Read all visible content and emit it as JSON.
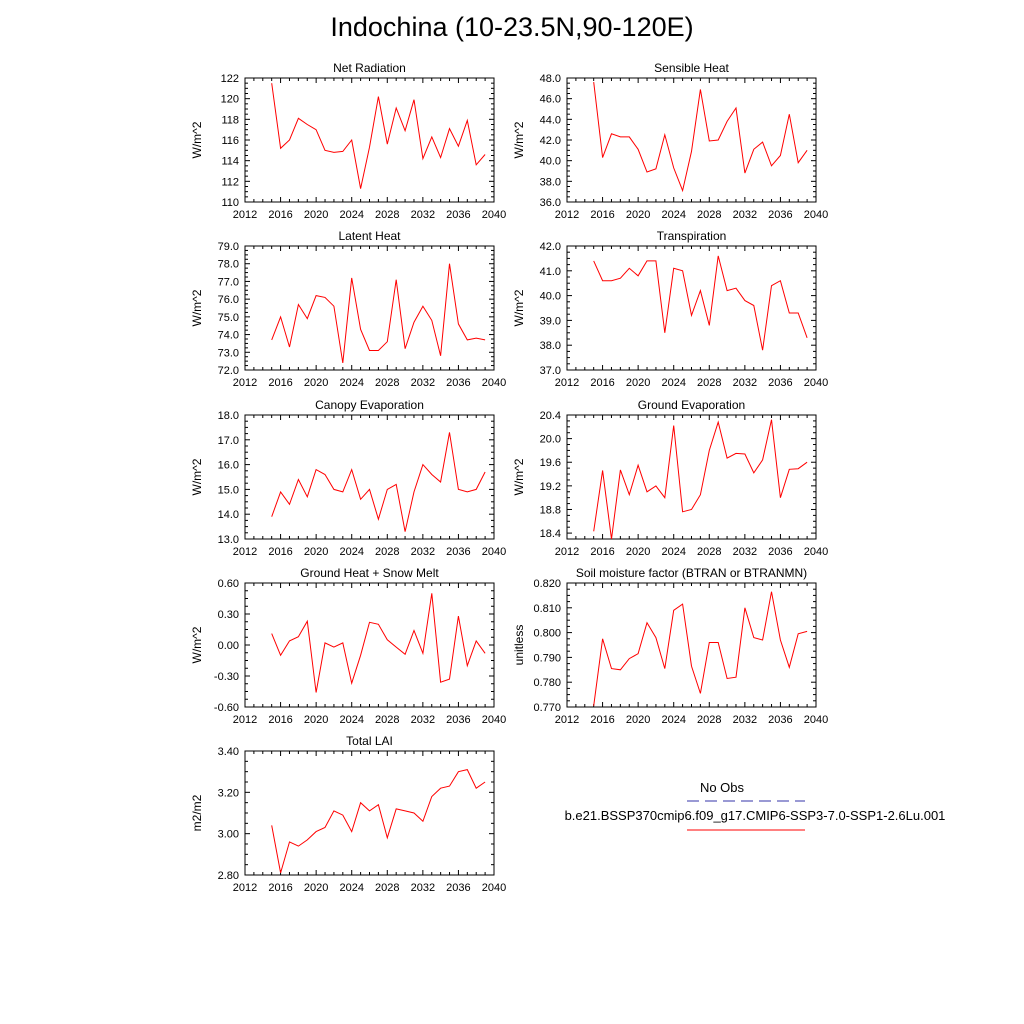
{
  "title": "Indochina (10-23.5N,90-120E)",
  "legend": {
    "obs_label": "No Obs",
    "obs_color": "#3333aa",
    "case_label": "b.e21.BSSP370cmip6.f09_g17.CMIP6-SSP3-7.0-SSP1-2.6Lu.001",
    "case_color": "#ff0000"
  },
  "chart_data": [
    {
      "type": "line",
      "title": "Net Radiation",
      "ylabel": "W/m^2",
      "xlim": [
        2012,
        2040
      ],
      "ylim": [
        110,
        122
      ],
      "xticks": [
        2012,
        2016,
        2020,
        2024,
        2028,
        2032,
        2036,
        2040
      ],
      "yticks": [
        110,
        112,
        114,
        116,
        118,
        120,
        122
      ],
      "ytick_labels": [
        "110",
        "112",
        "114",
        "116",
        "118",
        "120",
        "122"
      ],
      "x": [
        2015,
        2016,
        2017,
        2018,
        2019,
        2020,
        2021,
        2022,
        2023,
        2024,
        2025,
        2026,
        2027,
        2028,
        2029,
        2030,
        2031,
        2032,
        2033,
        2034,
        2035,
        2036,
        2037,
        2038,
        2039
      ],
      "series": [
        {
          "values": [
            121.5,
            115.2,
            116.0,
            118.1,
            117.5,
            117.0,
            115.0,
            114.8,
            114.9,
            116.0,
            111.3,
            115.3,
            120.2,
            115.6,
            119.1,
            116.9,
            119.9,
            114.2,
            116.3,
            114.3,
            117.1,
            115.4,
            117.9,
            113.6,
            114.6
          ]
        }
      ]
    },
    {
      "type": "line",
      "title": "Sensible Heat",
      "ylabel": "W/m^2",
      "xlim": [
        2012,
        2040
      ],
      "ylim": [
        36,
        48
      ],
      "xticks": [
        2012,
        2016,
        2020,
        2024,
        2028,
        2032,
        2036,
        2040
      ],
      "yticks": [
        36,
        38,
        40,
        42,
        44,
        46,
        48
      ],
      "ytick_labels": [
        "36.0",
        "38.0",
        "40.0",
        "42.0",
        "44.0",
        "46.0",
        "48.0"
      ],
      "x": [
        2015,
        2016,
        2017,
        2018,
        2019,
        2020,
        2021,
        2022,
        2023,
        2024,
        2025,
        2026,
        2027,
        2028,
        2029,
        2030,
        2031,
        2032,
        2033,
        2034,
        2035,
        2036,
        2037,
        2038,
        2039
      ],
      "series": [
        {
          "values": [
            47.6,
            40.3,
            42.6,
            42.3,
            42.3,
            41.1,
            38.9,
            39.2,
            42.5,
            39.3,
            37.1,
            40.9,
            46.9,
            41.9,
            42.0,
            43.8,
            45.1,
            38.8,
            41.1,
            41.8,
            39.5,
            40.5,
            44.5,
            39.8,
            41.0
          ]
        }
      ]
    },
    {
      "type": "line",
      "title": "Latent Heat",
      "ylabel": "W/m^2",
      "xlim": [
        2012,
        2040
      ],
      "ylim": [
        72,
        79
      ],
      "xticks": [
        2012,
        2016,
        2020,
        2024,
        2028,
        2032,
        2036,
        2040
      ],
      "yticks": [
        72,
        73,
        74,
        75,
        76,
        77,
        78,
        79
      ],
      "ytick_labels": [
        "72.0",
        "73.0",
        "74.0",
        "75.0",
        "76.0",
        "77.0",
        "78.0",
        "79.0"
      ],
      "x": [
        2015,
        2016,
        2017,
        2018,
        2019,
        2020,
        2021,
        2022,
        2023,
        2024,
        2025,
        2026,
        2027,
        2028,
        2029,
        2030,
        2031,
        2032,
        2033,
        2034,
        2035,
        2036,
        2037,
        2038,
        2039
      ],
      "series": [
        {
          "values": [
            73.7,
            75.0,
            73.3,
            75.7,
            74.9,
            76.2,
            76.1,
            75.6,
            72.4,
            77.2,
            74.3,
            73.1,
            73.1,
            73.6,
            77.1,
            73.2,
            74.7,
            75.6,
            74.8,
            72.8,
            78.0,
            74.6,
            73.7,
            73.8,
            73.7
          ]
        }
      ]
    },
    {
      "type": "line",
      "title": "Transpiration",
      "ylabel": "W/m^2",
      "xlim": [
        2012,
        2040
      ],
      "ylim": [
        37,
        42
      ],
      "xticks": [
        2012,
        2016,
        2020,
        2024,
        2028,
        2032,
        2036,
        2040
      ],
      "yticks": [
        37,
        38,
        39,
        40,
        41,
        42
      ],
      "ytick_labels": [
        "37.0",
        "38.0",
        "39.0",
        "40.0",
        "41.0",
        "42.0"
      ],
      "x": [
        2015,
        2016,
        2017,
        2018,
        2019,
        2020,
        2021,
        2022,
        2023,
        2024,
        2025,
        2026,
        2027,
        2028,
        2029,
        2030,
        2031,
        2032,
        2033,
        2034,
        2035,
        2036,
        2037,
        2038,
        2039
      ],
      "series": [
        {
          "values": [
            41.4,
            40.6,
            40.6,
            40.7,
            41.1,
            40.8,
            41.4,
            41.4,
            38.5,
            41.1,
            41.0,
            39.2,
            40.2,
            38.8,
            41.6,
            40.2,
            40.3,
            39.8,
            39.6,
            37.8,
            40.4,
            40.6,
            39.3,
            39.3,
            38.3
          ]
        }
      ]
    },
    {
      "type": "line",
      "title": "Canopy Evaporation",
      "ylabel": "W/m^2",
      "xlim": [
        2012,
        2040
      ],
      "ylim": [
        13,
        18
      ],
      "xticks": [
        2012,
        2016,
        2020,
        2024,
        2028,
        2032,
        2036,
        2040
      ],
      "yticks": [
        13,
        14,
        15,
        16,
        17,
        18
      ],
      "ytick_labels": [
        "13.0",
        "14.0",
        "15.0",
        "16.0",
        "17.0",
        "18.0"
      ],
      "x": [
        2015,
        2016,
        2017,
        2018,
        2019,
        2020,
        2021,
        2022,
        2023,
        2024,
        2025,
        2026,
        2027,
        2028,
        2029,
        2030,
        2031,
        2032,
        2033,
        2034,
        2035,
        2036,
        2037,
        2038,
        2039
      ],
      "series": [
        {
          "values": [
            13.9,
            14.9,
            14.4,
            15.4,
            14.7,
            15.8,
            15.6,
            15.0,
            14.9,
            15.8,
            14.6,
            15.0,
            13.8,
            15.0,
            15.2,
            13.3,
            14.9,
            16.0,
            15.6,
            15.3,
            17.3,
            15.0,
            14.9,
            15.0,
            15.7
          ]
        }
      ]
    },
    {
      "type": "line",
      "title": "Ground Evaporation",
      "ylabel": "W/m^2",
      "xlim": [
        2012,
        2040
      ],
      "ylim": [
        18.3,
        20.4
      ],
      "xticks": [
        2012,
        2016,
        2020,
        2024,
        2028,
        2032,
        2036,
        2040
      ],
      "yticks": [
        18.4,
        18.8,
        19.2,
        19.6,
        20.0,
        20.4
      ],
      "ytick_labels": [
        "18.4",
        "18.8",
        "19.2",
        "19.6",
        "20.0",
        "20.4"
      ],
      "x": [
        2015,
        2016,
        2017,
        2018,
        2019,
        2020,
        2021,
        2022,
        2023,
        2024,
        2025,
        2026,
        2027,
        2028,
        2029,
        2030,
        2031,
        2032,
        2033,
        2034,
        2035,
        2036,
        2037,
        2038,
        2039
      ],
      "series": [
        {
          "values": [
            18.43,
            19.46,
            18.3,
            19.47,
            19.05,
            19.55,
            19.1,
            19.2,
            19.0,
            20.22,
            18.76,
            18.8,
            19.05,
            19.8,
            20.28,
            19.67,
            19.75,
            19.74,
            19.42,
            19.64,
            20.32,
            19.0,
            19.48,
            19.49,
            19.6
          ]
        }
      ]
    },
    {
      "type": "line",
      "title": "Ground Heat + Snow Melt",
      "ylabel": "W/m^2",
      "xlim": [
        2012,
        2040
      ],
      "ylim": [
        -0.6,
        0.6
      ],
      "xticks": [
        2012,
        2016,
        2020,
        2024,
        2028,
        2032,
        2036,
        2040
      ],
      "yticks": [
        -0.6,
        -0.3,
        0.0,
        0.3,
        0.6
      ],
      "ytick_labels": [
        "-0.60",
        "-0.30",
        "0.00",
        "0.30",
        "0.60"
      ],
      "x": [
        2015,
        2016,
        2017,
        2018,
        2019,
        2020,
        2021,
        2022,
        2023,
        2024,
        2025,
        2026,
        2027,
        2028,
        2029,
        2030,
        2031,
        2032,
        2033,
        2034,
        2035,
        2036,
        2037,
        2038,
        2039
      ],
      "series": [
        {
          "values": [
            0.11,
            -0.1,
            0.04,
            0.08,
            0.23,
            -0.46,
            0.02,
            -0.02,
            0.02,
            -0.37,
            -0.1,
            0.22,
            0.2,
            0.05,
            -0.02,
            -0.09,
            0.14,
            -0.08,
            0.5,
            -0.36,
            -0.33,
            0.28,
            -0.2,
            0.04,
            -0.08
          ]
        }
      ]
    },
    {
      "type": "line",
      "title": "Soil moisture factor (BTRAN or BTRANMN)",
      "ylabel": "unitless",
      "xlim": [
        2012,
        2040
      ],
      "ylim": [
        0.77,
        0.82
      ],
      "xticks": [
        2012,
        2016,
        2020,
        2024,
        2028,
        2032,
        2036,
        2040
      ],
      "yticks": [
        0.77,
        0.78,
        0.79,
        0.8,
        0.81,
        0.82
      ],
      "ytick_labels": [
        "0.770",
        "0.780",
        "0.790",
        "0.800",
        "0.810",
        "0.820"
      ],
      "x": [
        2015,
        2016,
        2017,
        2018,
        2019,
        2020,
        2021,
        2022,
        2023,
        2024,
        2025,
        2026,
        2027,
        2028,
        2029,
        2030,
        2031,
        2032,
        2033,
        2034,
        2035,
        2036,
        2037,
        2038,
        2039
      ],
      "series": [
        {
          "values": [
            0.7705,
            0.7975,
            0.7855,
            0.785,
            0.7895,
            0.7915,
            0.804,
            0.798,
            0.7855,
            0.809,
            0.8115,
            0.7865,
            0.7755,
            0.796,
            0.796,
            0.7815,
            0.782,
            0.81,
            0.798,
            0.797,
            0.8165,
            0.797,
            0.786,
            0.7995,
            0.8005
          ]
        }
      ]
    },
    {
      "type": "line",
      "title": "Total LAI",
      "ylabel": "m2/m2",
      "xlim": [
        2012,
        2040
      ],
      "ylim": [
        2.8,
        3.4
      ],
      "xticks": [
        2012,
        2016,
        2020,
        2024,
        2028,
        2032,
        2036,
        2040
      ],
      "yticks": [
        2.8,
        3.0,
        3.2,
        3.4
      ],
      "ytick_labels": [
        "2.80",
        "3.00",
        "3.20",
        "3.40"
      ],
      "x": [
        2015,
        2016,
        2017,
        2018,
        2019,
        2020,
        2021,
        2022,
        2023,
        2024,
        2025,
        2026,
        2027,
        2028,
        2029,
        2030,
        2031,
        2032,
        2033,
        2034,
        2035,
        2036,
        2037,
        2038,
        2039
      ],
      "series": [
        {
          "values": [
            3.04,
            2.81,
            2.96,
            2.94,
            2.97,
            3.01,
            3.03,
            3.11,
            3.09,
            3.01,
            3.15,
            3.11,
            3.14,
            2.98,
            3.12,
            3.11,
            3.1,
            3.06,
            3.18,
            3.22,
            3.23,
            3.3,
            3.31,
            3.22,
            3.25
          ]
        }
      ]
    }
  ]
}
